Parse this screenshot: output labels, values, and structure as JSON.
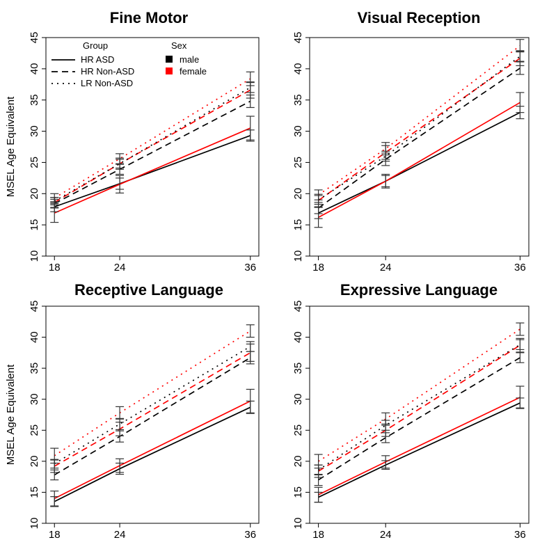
{
  "chart_data": [
    {
      "type": "line",
      "title": "Fine Motor",
      "ylabel": "MSEL Age Equivalent",
      "x": [
        18,
        24,
        36
      ],
      "xticks": [
        "18",
        "24",
        "36"
      ],
      "ylim": [
        10,
        45
      ],
      "yticks": [
        "10",
        "15",
        "20",
        "25",
        "30",
        "35",
        "40",
        "45"
      ],
      "series": [
        {
          "group": "HR ASD",
          "sex": "male",
          "values": [
            17.9,
            21.6,
            29.3
          ],
          "err": [
            0.8,
            0.9,
            0.9
          ]
        },
        {
          "group": "HR ASD",
          "sex": "female",
          "values": [
            16.9,
            21.5,
            30.5
          ],
          "err": [
            1.5,
            1.4,
            1.9
          ]
        },
        {
          "group": "HR Non-ASD",
          "sex": "male",
          "values": [
            18.4,
            23.9,
            34.8
          ],
          "err": [
            0.7,
            0.8,
            1.0
          ]
        },
        {
          "group": "HR Non-ASD",
          "sex": "female",
          "values": [
            18.6,
            24.8,
            36.6
          ],
          "err": [
            0.8,
            0.9,
            1.3
          ]
        },
        {
          "group": "LR Non-ASD",
          "sex": "male",
          "values": [
            18.8,
            24.8,
            37.0
          ],
          "err": [
            0.6,
            0.7,
            0.8
          ]
        },
        {
          "group": "LR Non-ASD",
          "sex": "female",
          "values": [
            19.3,
            25.6,
            38.4
          ],
          "err": [
            0.7,
            0.8,
            1.1
          ]
        }
      ]
    },
    {
      "type": "line",
      "title": "Visual Reception",
      "ylabel": "",
      "x": [
        18,
        24,
        36
      ],
      "xticks": [
        "18",
        "24",
        "36"
      ],
      "ylim": [
        10,
        45
      ],
      "yticks": [
        "10",
        "15",
        "20",
        "25",
        "30",
        "35",
        "40",
        "45"
      ],
      "series": [
        {
          "group": "HR ASD",
          "sex": "male",
          "values": [
            16.9,
            22.0,
            33.0
          ],
          "err": [
            0.9,
            0.9,
            1.0
          ]
        },
        {
          "group": "HR ASD",
          "sex": "female",
          "values": [
            16.2,
            22.0,
            34.6
          ],
          "err": [
            1.6,
            1.1,
            1.6
          ]
        },
        {
          "group": "HR Non-ASD",
          "sex": "male",
          "values": [
            17.7,
            25.5,
            40.1
          ],
          "err": [
            0.9,
            1.0,
            1.0
          ]
        },
        {
          "group": "HR Non-ASD",
          "sex": "female",
          "values": [
            18.9,
            26.6,
            41.7
          ],
          "err": [
            1.0,
            1.1,
            1.2
          ]
        },
        {
          "group": "LR Non-ASD",
          "sex": "male",
          "values": [
            19.0,
            26.0,
            42.0
          ],
          "err": [
            0.7,
            0.8,
            0.8
          ]
        },
        {
          "group": "LR Non-ASD",
          "sex": "female",
          "values": [
            19.8,
            27.2,
            43.7
          ],
          "err": [
            0.8,
            1.0,
            1.0
          ]
        }
      ]
    },
    {
      "type": "line",
      "title": "Receptive Language",
      "ylabel": "MSEL Age Equivalent",
      "x": [
        18,
        24,
        36
      ],
      "xticks": [
        "18",
        "24",
        "36"
      ],
      "ylim": [
        10,
        45
      ],
      "yticks": [
        "10",
        "15",
        "20",
        "25",
        "30",
        "35",
        "40",
        "45"
      ],
      "series": [
        {
          "group": "HR ASD",
          "sex": "male",
          "values": [
            13.5,
            18.8,
            28.7
          ],
          "err": [
            0.8,
            0.9,
            1.0
          ]
        },
        {
          "group": "HR ASD",
          "sex": "female",
          "values": [
            14.0,
            19.3,
            29.7
          ],
          "err": [
            1.2,
            1.1,
            1.9
          ]
        },
        {
          "group": "HR Non-ASD",
          "sex": "male",
          "values": [
            17.8,
            24.0,
            36.7
          ],
          "err": [
            0.8,
            0.9,
            1.0
          ]
        },
        {
          "group": "HR Non-ASD",
          "sex": "female",
          "values": [
            19.2,
            25.2,
            37.5
          ],
          "err": [
            1.0,
            1.1,
            1.4
          ]
        },
        {
          "group": "LR Non-ASD",
          "sex": "male",
          "values": [
            19.6,
            26.0,
            38.5
          ],
          "err": [
            0.7,
            0.9,
            0.8
          ]
        },
        {
          "group": "LR Non-ASD",
          "sex": "female",
          "values": [
            20.9,
            27.8,
            41.0
          ],
          "err": [
            1.2,
            1.0,
            1.0
          ]
        }
      ]
    },
    {
      "type": "line",
      "title": "Expressive Language",
      "ylabel": "",
      "x": [
        18,
        24,
        36
      ],
      "xticks": [
        "18",
        "24",
        "36"
      ],
      "ylim": [
        10,
        45
      ],
      "yticks": [
        "10",
        "15",
        "20",
        "25",
        "30",
        "35",
        "40",
        "45"
      ],
      "series": [
        {
          "group": "HR ASD",
          "sex": "male",
          "values": [
            14.2,
            19.4,
            29.4
          ],
          "err": [
            0.8,
            0.7,
            0.8
          ]
        },
        {
          "group": "HR ASD",
          "sex": "female",
          "values": [
            14.6,
            19.9,
            30.3
          ],
          "err": [
            1.2,
            1.0,
            1.8
          ]
        },
        {
          "group": "HR Non-ASD",
          "sex": "male",
          "values": [
            17.0,
            23.8,
            36.7
          ],
          "err": [
            0.9,
            0.8,
            0.8
          ]
        },
        {
          "group": "HR Non-ASD",
          "sex": "female",
          "values": [
            18.4,
            25.0,
            38.7
          ],
          "err": [
            1.0,
            1.0,
            1.1
          ]
        },
        {
          "group": "LR Non-ASD",
          "sex": "male",
          "values": [
            18.6,
            25.8,
            38.8
          ],
          "err": [
            0.8,
            0.8,
            0.8
          ]
        },
        {
          "group": "LR Non-ASD",
          "sex": "female",
          "values": [
            20.0,
            26.8,
            41.3
          ],
          "err": [
            1.1,
            1.0,
            1.0
          ]
        }
      ]
    }
  ],
  "legend": {
    "group_title": "Group",
    "sex_title": "Sex",
    "groups": [
      {
        "label": "HR ASD",
        "style": "solid"
      },
      {
        "label": "HR Non-ASD",
        "style": "dashed"
      },
      {
        "label": "LR Non-ASD",
        "style": "dotted"
      }
    ],
    "sexes": [
      {
        "label": "male",
        "color": "#000000"
      },
      {
        "label": "female",
        "color": "#ff0000"
      }
    ],
    "placement": "top-left of first panel"
  },
  "colors": {
    "male": "#000000",
    "female": "#ff0000",
    "errorbar": "#333333"
  }
}
